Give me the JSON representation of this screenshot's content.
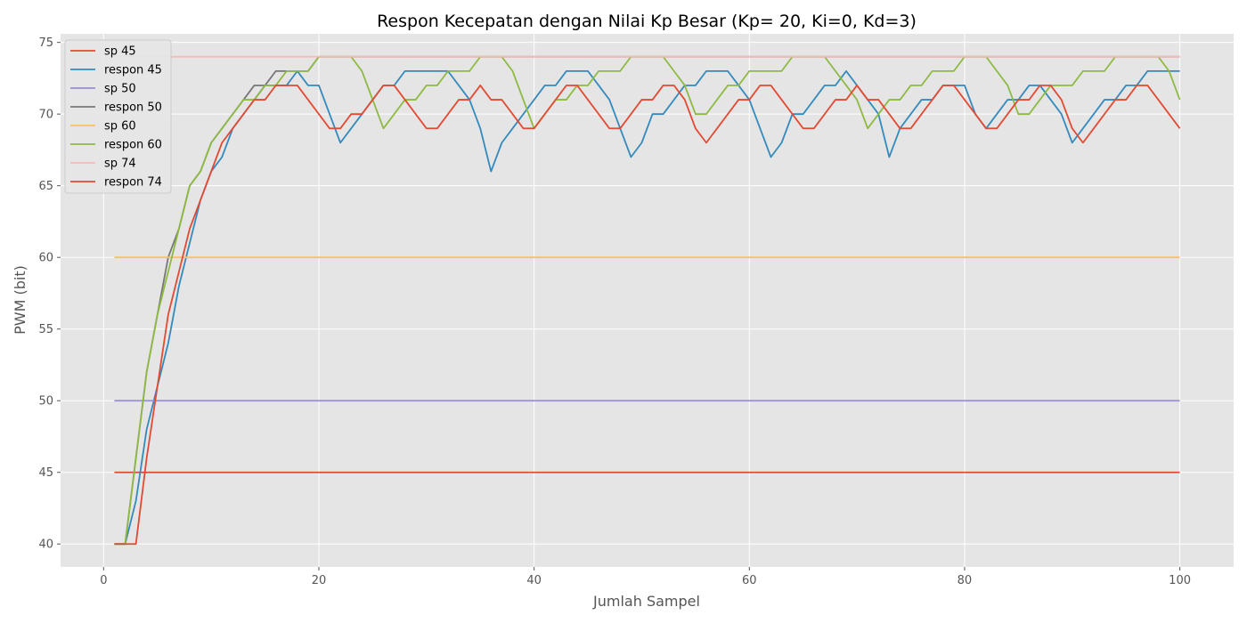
{
  "chart_data": {
    "type": "line",
    "title": "Respon Kecepatan dengan Nilai Kp Besar (Kp= 20, Ki=0, Kd=3)",
    "xlabel": "Jumlah Sampel",
    "ylabel": "PWM (bit)",
    "xlim": [
      -4,
      105
    ],
    "ylim": [
      38.4,
      75.6
    ],
    "xticks": [
      0,
      20,
      40,
      60,
      80,
      100
    ],
    "yticks": [
      40,
      45,
      50,
      55,
      60,
      65,
      70,
      75
    ],
    "grid": true,
    "legend": "top-left",
    "series": [
      {
        "name": "sp 45",
        "color": "#e24a33",
        "type": "constant",
        "value": 45,
        "x_start": 1,
        "x_end": 100
      },
      {
        "name": "respon 45",
        "color": "#348abd",
        "type": "samples",
        "x_start": 1,
        "values": [
          40,
          40,
          43,
          48,
          51,
          54,
          58,
          61,
          64,
          66,
          67,
          69,
          70,
          71,
          72,
          72,
          72,
          73,
          72,
          72,
          70,
          68,
          69,
          70,
          71,
          72,
          72,
          73,
          73,
          73,
          73,
          73,
          72,
          71,
          69,
          66,
          68,
          69,
          70,
          71,
          72,
          72,
          73,
          73,
          73,
          72,
          71,
          69,
          67,
          68,
          70,
          70,
          71,
          72,
          72,
          73,
          73,
          73,
          72,
          71,
          69,
          67,
          68,
          70,
          70,
          71,
          72,
          72,
          73,
          72,
          71,
          70,
          67,
          69,
          70,
          71,
          71,
          72,
          72,
          72,
          70,
          69,
          70,
          71,
          71,
          72,
          72,
          71,
          70,
          68,
          69,
          70,
          71,
          71,
          72,
          72,
          73,
          73,
          73,
          73
        ]
      },
      {
        "name": "sp 50",
        "color": "#988ed5",
        "type": "constant",
        "value": 50,
        "x_start": 1,
        "x_end": 100
      },
      {
        "name": "respon 50",
        "color": "#777777",
        "type": "samples",
        "x_start": 1,
        "values": [
          40,
          40,
          46,
          52,
          56,
          60,
          62,
          65,
          66,
          68,
          69,
          70,
          71,
          72,
          72,
          73,
          73,
          73,
          73,
          74,
          74,
          74,
          74,
          74,
          74,
          74,
          74,
          74,
          74,
          74,
          74,
          74,
          74,
          74,
          74,
          74,
          74,
          74,
          74,
          74,
          74,
          74,
          74,
          74,
          74,
          74,
          74,
          74,
          74,
          74,
          74,
          74,
          74,
          74,
          74,
          74,
          74,
          74,
          74,
          74,
          74,
          74,
          74,
          74,
          74,
          74,
          74,
          74,
          74,
          74,
          74,
          74,
          74,
          74,
          74,
          74,
          74,
          74,
          74,
          74,
          74,
          74,
          74,
          74,
          74,
          74,
          74,
          74,
          74,
          74,
          74,
          74,
          74,
          74,
          74,
          74,
          74,
          74,
          74,
          74
        ]
      },
      {
        "name": "sp 60",
        "color": "#fbc15e",
        "type": "constant",
        "value": 60,
        "x_start": 1,
        "x_end": 100
      },
      {
        "name": "respon 60",
        "color": "#8eba42",
        "type": "samples",
        "x_start": 1,
        "values": [
          40,
          40,
          46,
          52,
          56,
          59,
          62,
          65,
          66,
          68,
          69,
          70,
          71,
          71,
          72,
          72,
          73,
          73,
          73,
          74,
          74,
          74,
          74,
          73,
          71,
          69,
          70,
          71,
          71,
          72,
          72,
          73,
          73,
          73,
          74,
          74,
          74,
          73,
          71,
          69,
          70,
          71,
          71,
          72,
          72,
          73,
          73,
          73,
          74,
          74,
          74,
          74,
          73,
          72,
          70,
          70,
          71,
          72,
          72,
          73,
          73,
          73,
          73,
          74,
          74,
          74,
          74,
          73,
          72,
          71,
          69,
          70,
          71,
          71,
          72,
          72,
          73,
          73,
          73,
          74,
          74,
          74,
          73,
          72,
          70,
          70,
          71,
          72,
          72,
          72,
          73,
          73,
          73,
          74,
          74,
          74,
          74,
          74,
          73,
          71
        ]
      },
      {
        "name": "sp 74",
        "color": "#ffb5b8",
        "type": "constant",
        "value": 74,
        "x_start": 1,
        "x_end": 100
      },
      {
        "name": "respon 74",
        "color": "#e24a33",
        "type": "samples",
        "x_start": 1,
        "values": [
          40,
          40,
          40,
          46,
          51,
          56,
          59,
          62,
          64,
          66,
          68,
          69,
          70,
          71,
          71,
          72,
          72,
          72,
          71,
          70,
          69,
          69,
          70,
          70,
          71,
          72,
          72,
          71,
          70,
          69,
          69,
          70,
          71,
          71,
          72,
          71,
          71,
          70,
          69,
          69,
          70,
          71,
          72,
          72,
          71,
          70,
          69,
          69,
          70,
          71,
          71,
          72,
          72,
          71,
          69,
          68,
          69,
          70,
          71,
          71,
          72,
          72,
          71,
          70,
          69,
          69,
          70,
          71,
          71,
          72,
          71,
          71,
          70,
          69,
          69,
          70,
          71,
          72,
          72,
          71,
          70,
          69,
          69,
          70,
          71,
          71,
          72,
          72,
          71,
          69,
          68,
          69,
          70,
          71,
          71,
          72,
          72,
          71,
          70,
          69
        ]
      }
    ]
  }
}
